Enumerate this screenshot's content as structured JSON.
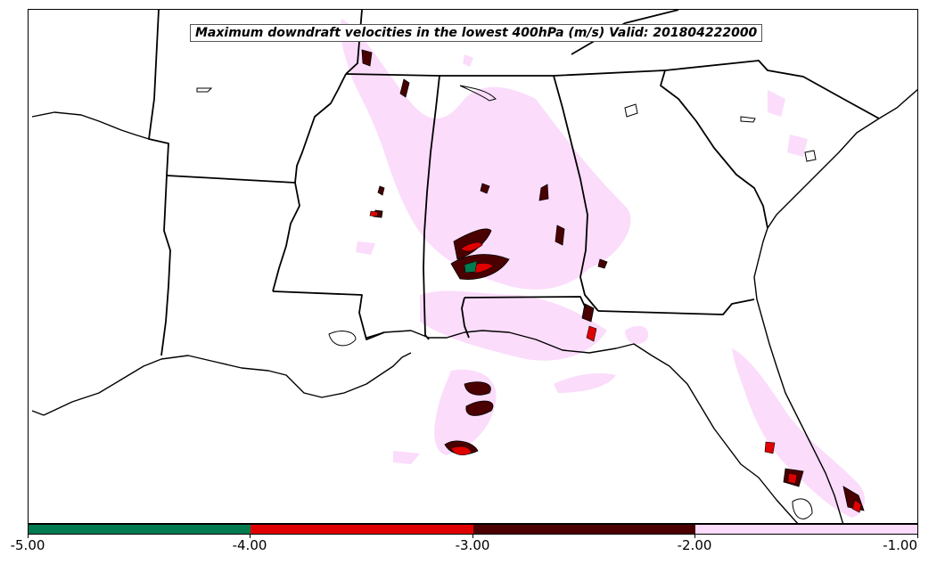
{
  "title": "Maximum downdraft velocities in the lowest 400hPa (m/s) Valid: 201804222000",
  "colorbar": {
    "ticks": [
      "-5.00",
      "-4.00",
      "-3.00",
      "-2.00",
      "-1.00"
    ],
    "bins": [
      {
        "range": [
          -5.0,
          -4.0
        ],
        "color": "#007a50"
      },
      {
        "range": [
          -4.0,
          -3.0
        ],
        "color": "#e00000"
      },
      {
        "range": [
          -3.0,
          -2.0
        ],
        "color": "#4a0000"
      },
      {
        "range": [
          -2.0,
          -1.0
        ],
        "color": "#fbdcfb"
      }
    ]
  },
  "colors": {
    "light": "#fbdcfb",
    "dark": "#4a0000",
    "red": "#e00000",
    "green": "#007a50",
    "boundary": "#000000"
  }
}
